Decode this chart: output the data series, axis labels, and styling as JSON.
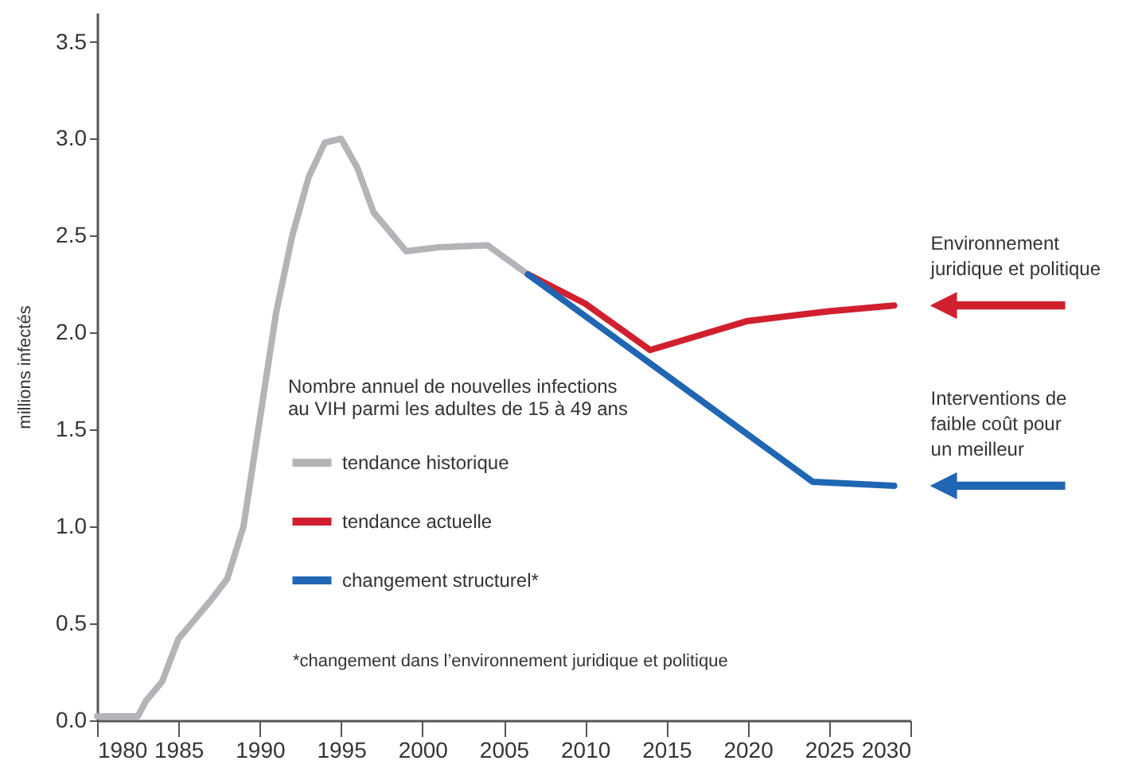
{
  "chart_data": {
    "type": "line",
    "ylabel": "millions infectés",
    "legend_title": "Nombre annuel de nouvelles infections\nau VIH parmi les adultes de 15 à 49 ans",
    "xlim": [
      1980,
      2030
    ],
    "xticks": [
      1980,
      1985,
      1990,
      1995,
      2000,
      2005,
      2010,
      2015,
      2020,
      2025,
      2030
    ],
    "ylim": [
      0,
      3.65
    ],
    "yticks": [
      {
        "value": 0,
        "label": "0.0"
      },
      {
        "value": 0.5,
        "label": "0.5"
      },
      {
        "value": 1,
        "label": "1.0"
      },
      {
        "value": 1.5,
        "label": "1.5"
      },
      {
        "value": 2,
        "label": "2.0"
      },
      {
        "value": 2.5,
        "label": "2.5"
      },
      {
        "value": 3,
        "label": "3.0"
      },
      {
        "value": 3.5,
        "label": "3.5"
      }
    ],
    "grid": false,
    "legend": "bottom",
    "marker": "none",
    "line_style": "solid",
    "series": [
      {
        "name": "tendance historique",
        "color": "#b3b3b8",
        "x": [
          1980,
          1982.5,
          1983,
          1984,
          1985,
          1986,
          1987,
          1988,
          1989,
          1990,
          1991,
          1992,
          1993,
          1994,
          1995,
          1996,
          1997,
          1999,
          2001,
          2004,
          2006.5
        ],
        "values": [
          0.02,
          0.02,
          0.1,
          0.2,
          0.42,
          0.52,
          0.62,
          0.73,
          1.0,
          1.55,
          2.1,
          2.5,
          2.8,
          2.98,
          3.0,
          2.85,
          2.62,
          2.42,
          2.44,
          2.45,
          2.3
        ]
      },
      {
        "name": "tendance actuelle",
        "color": "#d0202e",
        "x": [
          2006.5,
          2010,
          2014,
          2020,
          2025,
          2029
        ],
        "values": [
          2.3,
          2.15,
          1.91,
          2.06,
          2.11,
          2.14
        ]
      },
      {
        "name": "changement structurel*",
        "color": "#1f66b3",
        "x": [
          2006.5,
          2024,
          2029
        ],
        "values": [
          2.3,
          1.23,
          1.21
        ]
      }
    ],
    "annotations": [
      {
        "text": "Environnement\njuridique et politique",
        "x": 2029,
        "y": 2.14
      },
      {
        "text": "Interventions de\nfaible coût pour\nun meilleur",
        "x": 2029,
        "y": 1.21
      },
      "*changement dans l’environnement juridique et politique"
    ]
  }
}
